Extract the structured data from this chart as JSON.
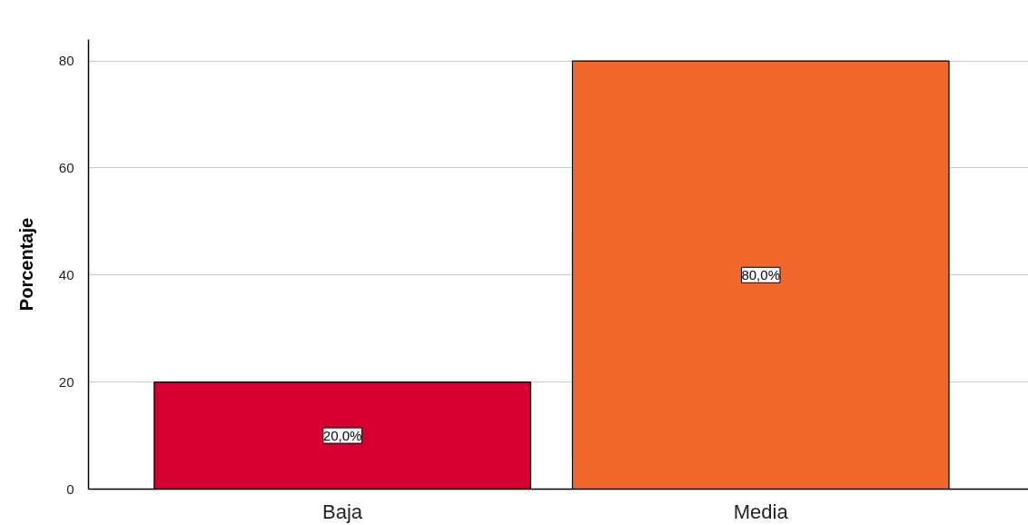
{
  "chart_data": {
    "type": "bar",
    "ylabel": "Porcentaje",
    "categories": [
      "Baja",
      "Media"
    ],
    "values": [
      20,
      80
    ],
    "colors": [
      "#d5002f",
      "#f2682c"
    ],
    "value_labels": [
      "20,0%",
      "80,0%"
    ],
    "ylim": [
      0,
      84
    ],
    "yticks": [
      0,
      20,
      40,
      60,
      80
    ],
    "grid": "y"
  }
}
